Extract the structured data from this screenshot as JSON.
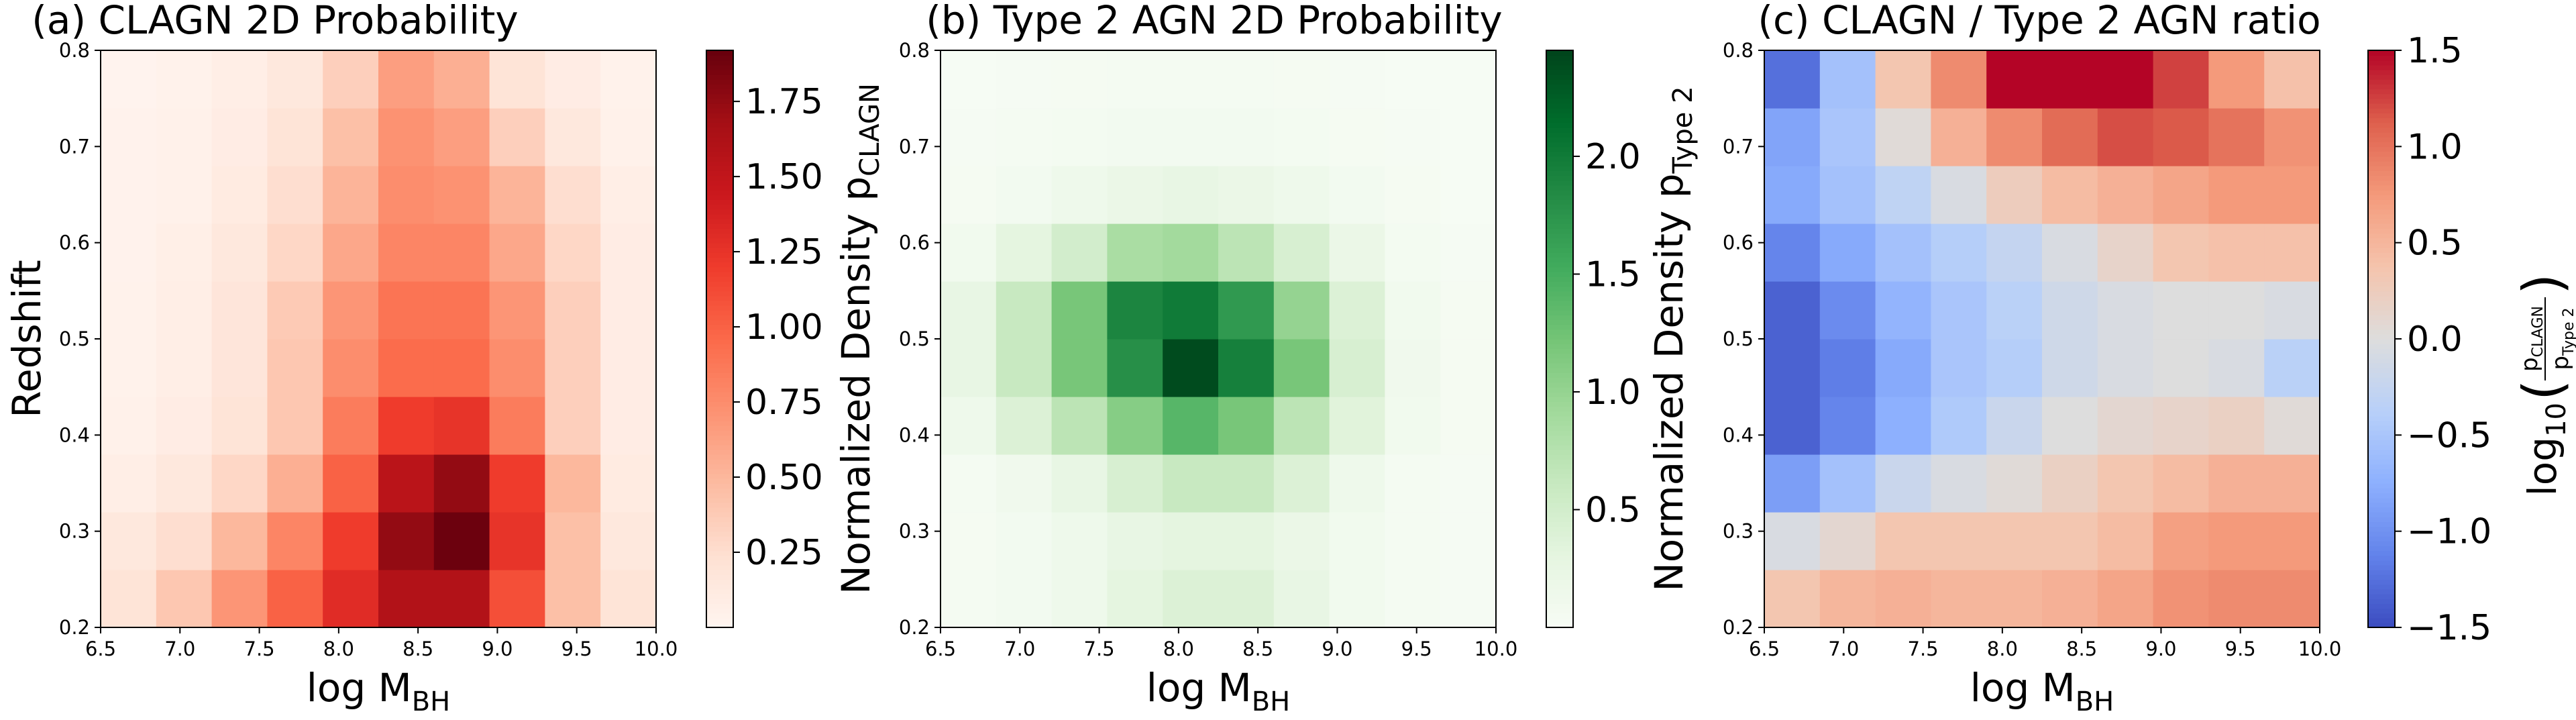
{
  "chart_data": [
    {
      "type": "heatmap",
      "title": "(a) CLAGN 2D Probability",
      "xlabel": "log M",
      "xlabel_sub": "BH",
      "ylabel": "Redshift",
      "xlim": [
        6.5,
        10.0
      ],
      "ylim": [
        0.2,
        0.8
      ],
      "xticks": [
        "6.5",
        "7.0",
        "7.5",
        "8.0",
        "8.5",
        "9.0",
        "9.5",
        "10.0"
      ],
      "yticks": [
        "0.2",
        "0.3",
        "0.4",
        "0.5",
        "0.6",
        "0.7",
        "0.8"
      ],
      "x_bin_edges": [
        6.5,
        6.85,
        7.2,
        7.55,
        7.9,
        8.25,
        8.6,
        8.95,
        9.3,
        9.65,
        10.0
      ],
      "y_bin_edges": [
        0.2,
        0.26,
        0.32,
        0.38,
        0.44,
        0.5,
        0.56,
        0.62,
        0.68,
        0.74,
        0.8
      ],
      "values": [
        [
          0.2,
          0.4,
          0.7,
          1.0,
          1.3,
          1.6,
          1.6,
          1.1,
          0.45,
          0.2
        ],
        [
          0.15,
          0.25,
          0.5,
          0.8,
          1.2,
          1.75,
          1.9,
          1.25,
          0.45,
          0.15
        ],
        [
          0.08,
          0.15,
          0.3,
          0.55,
          1.0,
          1.55,
          1.75,
          1.2,
          0.5,
          0.12
        ],
        [
          0.05,
          0.1,
          0.2,
          0.4,
          0.85,
          1.2,
          1.25,
          0.85,
          0.35,
          0.1
        ],
        [
          0.04,
          0.08,
          0.18,
          0.4,
          0.75,
          0.95,
          0.95,
          0.75,
          0.35,
          0.1
        ],
        [
          0.04,
          0.08,
          0.18,
          0.38,
          0.7,
          0.9,
          0.9,
          0.7,
          0.35,
          0.1
        ],
        [
          0.03,
          0.07,
          0.15,
          0.3,
          0.6,
          0.8,
          0.8,
          0.6,
          0.3,
          0.1
        ],
        [
          0.03,
          0.05,
          0.12,
          0.25,
          0.52,
          0.75,
          0.72,
          0.52,
          0.25,
          0.08
        ],
        [
          0.03,
          0.05,
          0.1,
          0.2,
          0.45,
          0.72,
          0.65,
          0.35,
          0.15,
          0.05
        ],
        [
          0.02,
          0.04,
          0.08,
          0.15,
          0.35,
          0.65,
          0.55,
          0.2,
          0.1,
          0.04
        ]
      ],
      "colormap": "Reds",
      "vmin": 0.0,
      "vmax": 1.92,
      "colorbar": {
        "label": "Normalized Density p",
        "label_sub": "CLAGN",
        "ticks": [
          0.25,
          0.5,
          0.75,
          1.0,
          1.25,
          1.5,
          1.75
        ],
        "tick_labels": [
          "0.25",
          "0.50",
          "0.75",
          "1.00",
          "1.25",
          "1.50",
          "1.75"
        ]
      }
    },
    {
      "type": "heatmap",
      "title": "(b) Type 2 AGN 2D Probability",
      "xlabel": "log M",
      "xlabel_sub": "BH",
      "ylabel": "",
      "xlim": [
        6.5,
        10.0
      ],
      "ylim": [
        0.2,
        0.8
      ],
      "xticks": [
        "6.5",
        "7.0",
        "7.5",
        "8.0",
        "8.5",
        "9.0",
        "9.5",
        "10.0"
      ],
      "yticks": [
        "0.2",
        "0.3",
        "0.4",
        "0.5",
        "0.6",
        "0.7",
        "0.8"
      ],
      "x_bin_edges": [
        6.5,
        6.85,
        7.2,
        7.55,
        7.9,
        8.25,
        8.6,
        8.95,
        9.3,
        9.65,
        10.0
      ],
      "y_bin_edges": [
        0.2,
        0.26,
        0.32,
        0.38,
        0.44,
        0.5,
        0.56,
        0.62,
        0.68,
        0.74,
        0.8
      ],
      "values": [
        [
          0.05,
          0.08,
          0.15,
          0.3,
          0.4,
          0.4,
          0.25,
          0.1,
          0.05,
          0.03
        ],
        [
          0.04,
          0.08,
          0.15,
          0.25,
          0.3,
          0.3,
          0.2,
          0.1,
          0.05,
          0.03
        ],
        [
          0.05,
          0.12,
          0.25,
          0.45,
          0.6,
          0.6,
          0.4,
          0.15,
          0.05,
          0.03
        ],
        [
          0.15,
          0.4,
          0.7,
          1.1,
          1.4,
          1.2,
          0.7,
          0.35,
          0.1,
          0.04
        ],
        [
          0.25,
          0.6,
          1.2,
          1.8,
          2.4,
          1.95,
          1.2,
          0.45,
          0.12,
          0.04
        ],
        [
          0.25,
          0.6,
          1.2,
          1.9,
          2.0,
          1.7,
          1.0,
          0.4,
          0.1,
          0.04
        ],
        [
          0.1,
          0.3,
          0.5,
          0.85,
          0.9,
          0.7,
          0.45,
          0.2,
          0.06,
          0.03
        ],
        [
          0.04,
          0.08,
          0.15,
          0.2,
          0.25,
          0.2,
          0.15,
          0.08,
          0.04,
          0.02
        ],
        [
          0.03,
          0.05,
          0.06,
          0.08,
          0.08,
          0.08,
          0.06,
          0.04,
          0.03,
          0.02
        ],
        [
          0.02,
          0.03,
          0.04,
          0.05,
          0.05,
          0.05,
          0.04,
          0.03,
          0.02,
          0.02
        ]
      ],
      "colormap": "Greens",
      "vmin": 0.0,
      "vmax": 2.45,
      "colorbar": {
        "label": "Normalized Density p",
        "label_sub": "Type 2",
        "ticks": [
          0.5,
          1.0,
          1.5,
          2.0
        ],
        "tick_labels": [
          "0.5",
          "1.0",
          "1.5",
          "2.0"
        ]
      }
    },
    {
      "type": "heatmap",
      "title": "(c) CLAGN / Type 2 AGN ratio",
      "xlabel": "log M",
      "xlabel_sub": "BH",
      "ylabel": "",
      "xlim": [
        6.5,
        10.0
      ],
      "ylim": [
        0.2,
        0.8
      ],
      "xticks": [
        "6.5",
        "7.0",
        "7.5",
        "8.0",
        "8.5",
        "9.0",
        "9.5",
        "10.0"
      ],
      "yticks": [
        "0.2",
        "0.3",
        "0.4",
        "0.5",
        "0.6",
        "0.7",
        "0.8"
      ],
      "x_bin_edges": [
        6.5,
        6.85,
        7.2,
        7.55,
        7.9,
        8.25,
        8.6,
        8.95,
        9.3,
        9.65,
        10.0
      ],
      "y_bin_edges": [
        0.2,
        0.26,
        0.32,
        0.38,
        0.44,
        0.5,
        0.56,
        0.62,
        0.68,
        0.74,
        0.8
      ],
      "values": [
        [
          0.35,
          0.5,
          0.55,
          0.5,
          0.5,
          0.55,
          0.65,
          0.8,
          0.85,
          0.85
        ],
        [
          -0.05,
          0.1,
          0.35,
          0.35,
          0.35,
          0.35,
          0.45,
          0.7,
          0.75,
          0.75
        ],
        [
          -0.9,
          -0.55,
          -0.2,
          -0.05,
          0.05,
          0.2,
          0.35,
          0.45,
          0.55,
          0.55
        ],
        [
          -1.35,
          -1.1,
          -0.75,
          -0.45,
          -0.2,
          0.0,
          0.1,
          0.15,
          0.2,
          0.05
        ],
        [
          -1.35,
          -1.15,
          -0.8,
          -0.5,
          -0.4,
          -0.15,
          -0.05,
          0.0,
          -0.05,
          -0.35
        ],
        [
          -1.35,
          -1.05,
          -0.7,
          -0.5,
          -0.35,
          -0.15,
          -0.05,
          0.0,
          0.0,
          -0.05
        ],
        [
          -1.1,
          -0.8,
          -0.55,
          -0.4,
          -0.25,
          -0.05,
          0.15,
          0.35,
          0.4,
          0.4
        ],
        [
          -0.8,
          -0.55,
          -0.3,
          -0.05,
          0.25,
          0.45,
          0.55,
          0.65,
          0.75,
          0.75
        ],
        [
          -0.85,
          -0.5,
          0.05,
          0.55,
          0.85,
          1.05,
          1.2,
          1.15,
          1.0,
          0.8
        ],
        [
          -1.25,
          -0.55,
          0.35,
          0.85,
          1.5,
          1.5,
          1.5,
          1.25,
          0.75,
          0.4
        ]
      ],
      "colormap": "coolwarm",
      "vmin": -1.5,
      "vmax": 1.5,
      "colorbar": {
        "label": "log",
        "label_sub": "10",
        "label_fraction_num": "p",
        "label_fraction_num_sub": "CLAGN",
        "label_fraction_den": "p",
        "label_fraction_den_sub": "Type 2",
        "ticks": [
          -1.5,
          -1.0,
          -0.5,
          0.0,
          0.5,
          1.0,
          1.5
        ],
        "tick_labels": [
          "−1.5",
          "−1.0",
          "−0.5",
          "0.0",
          "0.5",
          "1.0",
          "1.5"
        ]
      }
    }
  ]
}
